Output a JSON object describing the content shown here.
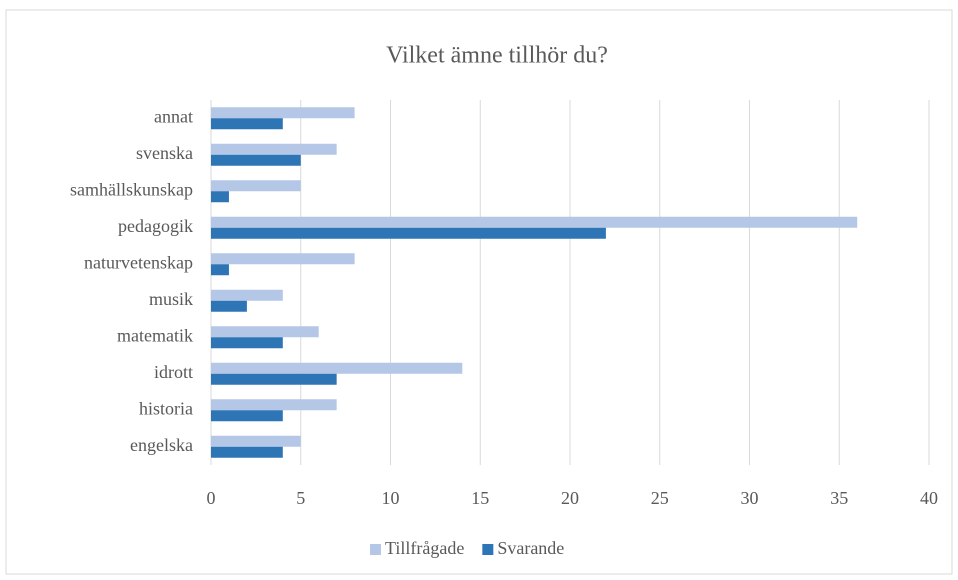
{
  "chart_data": {
    "type": "hbar",
    "title": "Vilket ämne tillhör du?",
    "categories": [
      "engelska",
      "historia",
      "idrott",
      "matematik",
      "musik",
      "naturvetenskap",
      "pedagogik",
      "samhällskunskap",
      "svenska",
      "annat"
    ],
    "series": [
      {
        "name": "Tillfrågade",
        "color": "#b4c7e7",
        "values": [
          5,
          7,
          14,
          6,
          4,
          8,
          36,
          5,
          7,
          8
        ]
      },
      {
        "name": "Svarande",
        "color": "#2e75b6",
        "values": [
          4,
          4,
          7,
          4,
          2,
          1,
          22,
          1,
          5,
          4
        ]
      }
    ],
    "xlim": [
      0,
      40
    ],
    "xticks": [
      0,
      5,
      10,
      15,
      20,
      25,
      30,
      35,
      40
    ],
    "grid": true,
    "legend": "bottom"
  }
}
